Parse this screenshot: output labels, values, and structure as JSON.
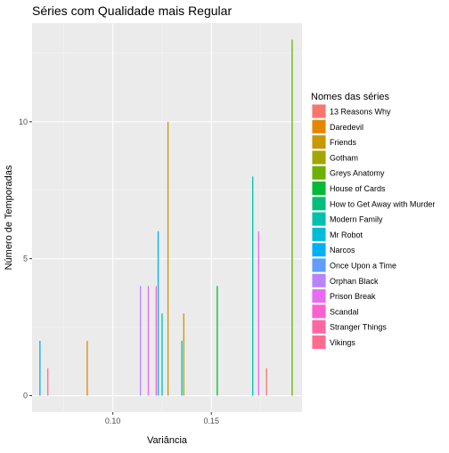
{
  "chart_data": {
    "type": "bar",
    "title": "Séries com Qualidade mais Regular",
    "xlabel": "Variância",
    "ylabel": "Número de Temporadas",
    "xlim": [
      0.059,
      0.196
    ],
    "ylim": [
      -0.6,
      13.6
    ],
    "x_ticks": [
      0.1,
      0.15
    ],
    "x_tick_labels": [
      "0.10",
      "0.15"
    ],
    "y_ticks": [
      0,
      5,
      10
    ],
    "y_tick_labels": [
      "0",
      "5",
      "10"
    ],
    "grid": true,
    "legend_title": "Nomes das séries",
    "legend_position": "right",
    "series": [
      {
        "name": "13 Reasons Why",
        "color": "#F8766D",
        "points": [
          [
            0.178,
            1
          ]
        ]
      },
      {
        "name": "Daredevil",
        "color": "#E58700",
        "points": [
          [
            0.087,
            2
          ]
        ]
      },
      {
        "name": "Friends",
        "color": "#C99800",
        "points": [
          [
            0.128,
            10
          ],
          [
            0.136,
            3
          ]
        ]
      },
      {
        "name": "Gotham",
        "color": "#A3A500",
        "points": []
      },
      {
        "name": "Greys Anatomy",
        "color": "#6BB100",
        "points": [
          [
            0.191,
            13
          ]
        ]
      },
      {
        "name": "House of Cards",
        "color": "#00BA38",
        "points": [
          [
            0.153,
            4
          ]
        ]
      },
      {
        "name": "How to Get Away with Murder",
        "color": "#00BF7D",
        "points": []
      },
      {
        "name": "Modern Family",
        "color": "#00C0AF",
        "points": [
          [
            0.135,
            2
          ],
          [
            0.171,
            8
          ],
          [
            0.125,
            3
          ]
        ]
      },
      {
        "name": "Mr Robot",
        "color": "#00BCD8",
        "points": []
      },
      {
        "name": "Narcos",
        "color": "#00B0F6",
        "points": [
          [
            0.063,
            2
          ],
          [
            0.123,
            6
          ]
        ]
      },
      {
        "name": "Once Upon a Time",
        "color": "#619CFF",
        "points": []
      },
      {
        "name": "Orphan Black",
        "color": "#B983FF",
        "points": [
          [
            0.114,
            4
          ]
        ]
      },
      {
        "name": "Prison Break",
        "color": "#E76BF3",
        "points": [
          [
            0.118,
            4
          ],
          [
            0.174,
            6
          ]
        ]
      },
      {
        "name": "Scandal",
        "color": "#FD61D1",
        "points": [
          [
            0.122,
            4
          ]
        ]
      },
      {
        "name": "Stranger Things",
        "color": "#FF67A4",
        "points": [
          [
            0.067,
            1
          ]
        ]
      },
      {
        "name": "Vikings",
        "color": "#FF6C90",
        "points": []
      }
    ]
  }
}
